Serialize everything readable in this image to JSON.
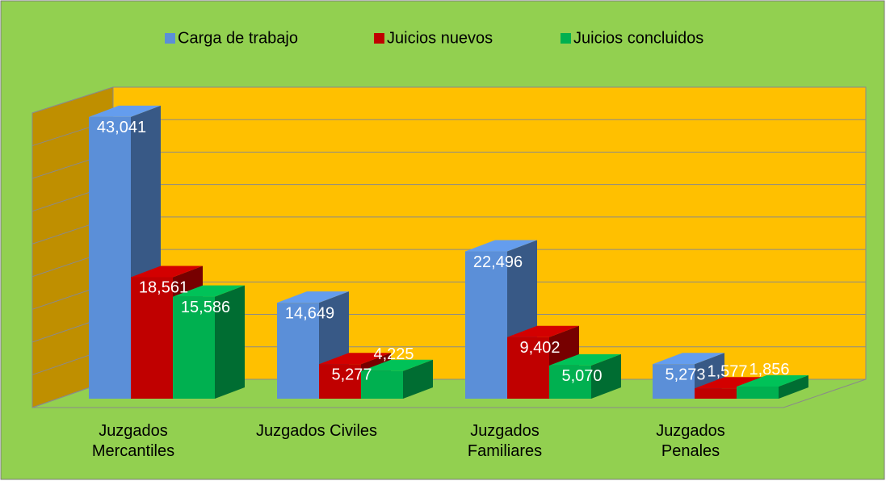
{
  "chart_data": {
    "type": "bar3d",
    "categories": [
      "Juzgados\nMercantiles",
      "Juzgados Civiles",
      "Juzgados\nFamiliares",
      "Juzgados\nPenales"
    ],
    "series": [
      {
        "name": "Carga de trabajo",
        "color": "#5B8FD8",
        "values": [
          43041,
          14649,
          22496,
          5273
        ],
        "value_labels": [
          "43,041",
          "14,649",
          "22,496",
          "5,273"
        ]
      },
      {
        "name": "Juicios nuevos",
        "color": "#C00000",
        "values": [
          18561,
          5277,
          9402,
          1577
        ],
        "value_labels": [
          "18,561",
          "5,277",
          "9,402",
          "1,577"
        ]
      },
      {
        "name": "Juicios concluidos",
        "color": "#00B050",
        "values": [
          15586,
          4225,
          5070,
          1856
        ],
        "value_labels": [
          "15,586",
          "4,225",
          "5,070",
          "1,856"
        ]
      }
    ],
    "ylim": [
      0,
      45000
    ],
    "yticks": [
      0,
      5000,
      10000,
      15000,
      20000,
      25000,
      30000,
      35000,
      40000,
      45000
    ],
    "grid": true,
    "legend": "top"
  }
}
